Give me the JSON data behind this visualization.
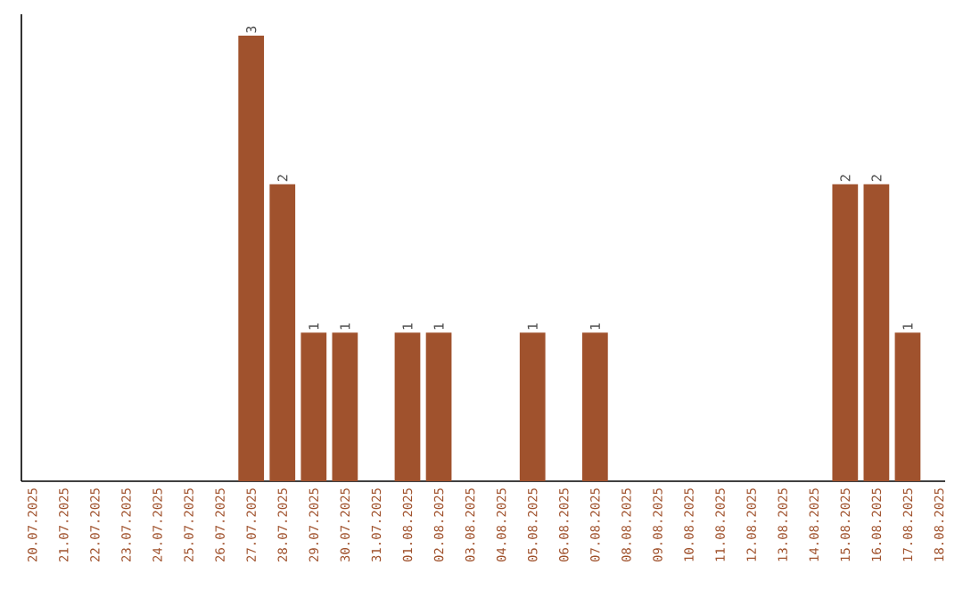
{
  "chart_data": {
    "type": "bar",
    "categories": [
      "20.07.2025",
      "21.07.2025",
      "22.07.2025",
      "23.07.2025",
      "24.07.2025",
      "25.07.2025",
      "26.07.2025",
      "27.07.2025",
      "28.07.2025",
      "29.07.2025",
      "30.07.2025",
      "31.07.2025",
      "01.08.2025",
      "02.08.2025",
      "03.08.2025",
      "04.08.2025",
      "05.08.2025",
      "06.08.2025",
      "07.08.2025",
      "08.08.2025",
      "09.08.2025",
      "10.08.2025",
      "11.08.2025",
      "12.08.2025",
      "13.08.2025",
      "14.08.2025",
      "15.08.2025",
      "16.08.2025",
      "17.08.2025",
      "18.08.2025"
    ],
    "values": [
      0,
      0,
      0,
      0,
      0,
      0,
      0,
      3,
      2,
      1,
      1,
      0,
      1,
      1,
      0,
      0,
      1,
      0,
      1,
      0,
      0,
      0,
      0,
      0,
      0,
      0,
      2,
      2,
      1,
      0
    ],
    "value_labels": [
      null,
      null,
      null,
      null,
      null,
      null,
      null,
      "3",
      "2",
      "1",
      "1",
      null,
      "1",
      "1",
      null,
      null,
      "1",
      null,
      "1",
      null,
      null,
      null,
      null,
      null,
      null,
      null,
      "2",
      "2",
      "1",
      null
    ],
    "color": "#a0522d",
    "tick_labels": "x",
    "grid": false
  }
}
